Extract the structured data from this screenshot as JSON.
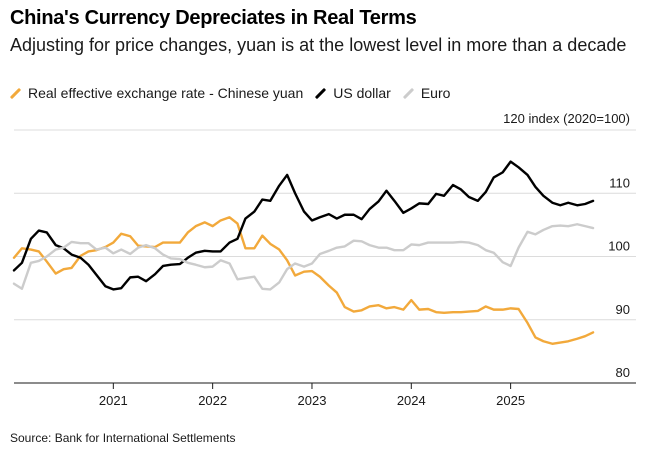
{
  "header": {
    "title": "China's Currency Depreciates in Real Terms",
    "subtitle": "Adjusting for price changes, yuan is at the lowest level in more than a decade"
  },
  "footer": {
    "source": "Source: Bank for International Settlements"
  },
  "chart_data": {
    "type": "line",
    "title": "China's Currency Depreciates in Real Terms",
    "subtitle": "Adjusting for price changes, yuan is at the lowest level in more than a decade",
    "y_unit_label": "120 index (2020=100)",
    "ylim": [
      80,
      120
    ],
    "yticks": [
      80,
      90,
      100,
      110
    ],
    "ytick_labels": [
      "80",
      "90",
      "100",
      "110"
    ],
    "x_range": [
      2020.0,
      2025.92
    ],
    "xticks": [
      2021,
      2022,
      2023,
      2024,
      2025
    ],
    "xtick_labels": [
      "2021",
      "2022",
      "2023",
      "2024",
      "2025"
    ],
    "grid": "horizontal",
    "legend_placement": "top-left",
    "source": "Source: Bank for International Settlements",
    "series": [
      {
        "name": "Real effective exchange rate - Chinese yuan",
        "color": "#f2a93b",
        "x": [
          2020.0,
          2020.08,
          2020.17,
          2020.25,
          2020.33,
          2020.42,
          2020.5,
          2020.58,
          2020.67,
          2020.75,
          2020.83,
          2020.92,
          2021.0,
          2021.08,
          2021.17,
          2021.25,
          2021.33,
          2021.42,
          2021.5,
          2021.58,
          2021.67,
          2021.75,
          2021.83,
          2021.92,
          2022.0,
          2022.08,
          2022.17,
          2022.25,
          2022.33,
          2022.42,
          2022.5,
          2022.58,
          2022.67,
          2022.75,
          2022.83,
          2022.92,
          2023.0,
          2023.08,
          2023.17,
          2023.25,
          2023.33,
          2023.42,
          2023.5,
          2023.58,
          2023.67,
          2023.75,
          2023.83,
          2023.92,
          2024.0,
          2024.08,
          2024.17,
          2024.25,
          2024.33,
          2024.42,
          2024.5,
          2024.58,
          2024.67,
          2024.75,
          2024.83,
          2024.92,
          2025.0,
          2025.08,
          2025.17,
          2025.25,
          2025.33,
          2025.42,
          2025.5,
          2025.58,
          2025.67,
          2025.75,
          2025.83
        ],
        "y": [
          99.8,
          101.3,
          101.1,
          100.8,
          99.2,
          97.3,
          98.0,
          98.2,
          100.1,
          100.8,
          101.0,
          101.5,
          102.2,
          103.6,
          103.2,
          101.7,
          101.6,
          101.5,
          102.2,
          102.2,
          102.2,
          103.8,
          104.8,
          105.4,
          104.8,
          105.7,
          106.2,
          105.2,
          101.3,
          101.3,
          103.3,
          102.0,
          101.1,
          99.4,
          97.0,
          97.6,
          97.7,
          96.8,
          95.4,
          94.3,
          92.0,
          91.3,
          91.5,
          92.1,
          92.3,
          91.8,
          92.0,
          91.6,
          93.1,
          91.6,
          91.7,
          91.2,
          91.1,
          91.2,
          91.2,
          91.3,
          91.4,
          92.1,
          91.6,
          91.6,
          91.8,
          91.7,
          89.5,
          87.2,
          86.6,
          86.2,
          86.4,
          86.6,
          87.0,
          87.4,
          88.0
        ]
      },
      {
        "name": "US dollar",
        "color": "#000000",
        "x": [
          2020.0,
          2020.08,
          2020.17,
          2020.25,
          2020.33,
          2020.42,
          2020.5,
          2020.58,
          2020.67,
          2020.75,
          2020.83,
          2020.92,
          2021.0,
          2021.08,
          2021.17,
          2021.25,
          2021.33,
          2021.42,
          2021.5,
          2021.58,
          2021.67,
          2021.75,
          2021.83,
          2021.92,
          2022.0,
          2022.08,
          2022.17,
          2022.25,
          2022.33,
          2022.42,
          2022.5,
          2022.58,
          2022.67,
          2022.75,
          2022.83,
          2022.92,
          2023.0,
          2023.08,
          2023.17,
          2023.25,
          2023.33,
          2023.42,
          2023.5,
          2023.58,
          2023.67,
          2023.75,
          2023.83,
          2023.92,
          2024.0,
          2024.08,
          2024.17,
          2024.25,
          2024.33,
          2024.42,
          2024.5,
          2024.58,
          2024.67,
          2024.75,
          2024.83,
          2024.92,
          2025.0,
          2025.08,
          2025.17,
          2025.25,
          2025.33,
          2025.42,
          2025.5,
          2025.58,
          2025.67,
          2025.75,
          2025.83
        ],
        "y": [
          97.8,
          99.0,
          102.8,
          104.1,
          103.8,
          101.8,
          101.3,
          100.3,
          99.8,
          98.7,
          97.1,
          95.3,
          94.8,
          95.0,
          96.7,
          96.8,
          96.1,
          97.2,
          98.5,
          98.7,
          98.8,
          99.8,
          100.6,
          100.9,
          100.8,
          100.8,
          102.2,
          102.8,
          106.0,
          107.1,
          109.0,
          108.8,
          111.2,
          112.9,
          110.0,
          107.1,
          105.7,
          106.2,
          106.7,
          106.0,
          106.6,
          106.6,
          105.9,
          107.5,
          108.7,
          110.4,
          108.8,
          106.9,
          107.6,
          108.4,
          108.3,
          109.9,
          109.6,
          111.3,
          110.6,
          109.4,
          108.8,
          110.2,
          112.5,
          113.3,
          115.0,
          114.1,
          112.9,
          111.0,
          109.6,
          108.5,
          108.1,
          108.5,
          108.1,
          108.3,
          108.8
        ]
      },
      {
        "name": "Euro",
        "color": "#cccccc",
        "x": [
          2020.0,
          2020.08,
          2020.17,
          2020.25,
          2020.33,
          2020.42,
          2020.5,
          2020.58,
          2020.67,
          2020.75,
          2020.83,
          2020.92,
          2021.0,
          2021.08,
          2021.17,
          2021.25,
          2021.33,
          2021.42,
          2021.5,
          2021.58,
          2021.67,
          2021.75,
          2021.83,
          2021.92,
          2022.0,
          2022.08,
          2022.17,
          2022.25,
          2022.33,
          2022.42,
          2022.5,
          2022.58,
          2022.67,
          2022.75,
          2022.83,
          2022.92,
          2023.0,
          2023.08,
          2023.17,
          2023.25,
          2023.33,
          2023.42,
          2023.5,
          2023.58,
          2023.67,
          2023.75,
          2023.83,
          2023.92,
          2024.0,
          2024.08,
          2024.17,
          2024.25,
          2024.33,
          2024.42,
          2024.5,
          2024.58,
          2024.67,
          2024.75,
          2024.83,
          2024.92,
          2025.0,
          2025.08,
          2025.17,
          2025.25,
          2025.33,
          2025.42,
          2025.5,
          2025.58,
          2025.67,
          2025.75,
          2025.83
        ],
        "y": [
          95.7,
          94.9,
          99.0,
          99.3,
          100.0,
          101.1,
          101.4,
          102.3,
          102.1,
          102.1,
          101.1,
          101.4,
          100.5,
          101.1,
          100.4,
          101.4,
          101.8,
          101.3,
          100.3,
          99.7,
          99.6,
          99.0,
          98.7,
          98.3,
          98.4,
          99.4,
          98.9,
          96.4,
          96.6,
          96.8,
          94.9,
          94.8,
          95.9,
          98.0,
          98.9,
          98.4,
          98.9,
          100.4,
          100.9,
          101.4,
          101.6,
          102.5,
          102.4,
          101.8,
          101.4,
          101.4,
          101.0,
          101.0,
          101.9,
          101.8,
          102.2,
          102.2,
          102.2,
          102.2,
          102.3,
          102.2,
          101.8,
          101.0,
          100.6,
          99.1,
          98.5,
          101.4,
          103.9,
          103.5,
          104.2,
          104.8,
          104.9,
          104.8,
          105.1,
          104.8,
          104.5
        ]
      }
    ]
  }
}
